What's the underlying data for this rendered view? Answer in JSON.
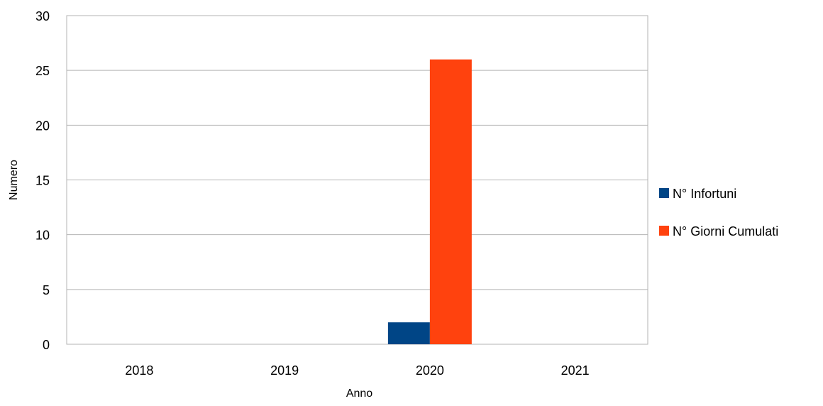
{
  "chart_data": {
    "type": "bar",
    "categories": [
      "2018",
      "2019",
      "2020",
      "2021"
    ],
    "series": [
      {
        "name": "N° Infortuni",
        "values": [
          0,
          0,
          2,
          0
        ],
        "color": "#004586"
      },
      {
        "name": "N° Giorni Cumulati",
        "values": [
          0,
          0,
          26,
          0
        ],
        "color": "#ff420e"
      }
    ],
    "xlabel": "Anno",
    "ylabel": "Numero",
    "ylim": [
      0,
      30
    ],
    "yticks": [
      "0",
      "5",
      "10",
      "15",
      "20",
      "25",
      "30"
    ],
    "grid": true,
    "legend_position": "right"
  }
}
